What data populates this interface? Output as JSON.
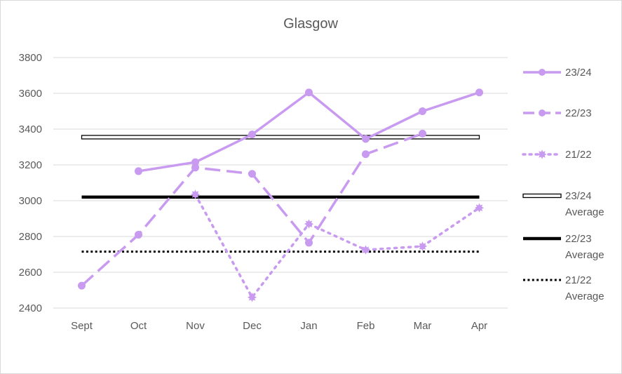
{
  "chart_data": {
    "type": "line",
    "title": "Glasgow",
    "xlabel": "",
    "ylabel": "",
    "categories": [
      "Sept",
      "Oct",
      "Nov",
      "Dec",
      "Jan",
      "Feb",
      "Mar",
      "Apr"
    ],
    "ylim": [
      2400,
      3800
    ],
    "yticks": [
      2400,
      2600,
      2800,
      3000,
      3200,
      3400,
      3600,
      3800
    ],
    "grid": true,
    "legend_position": "right",
    "series": [
      {
        "name": "23/24",
        "style": "solid-marker",
        "color": "#c89af0",
        "values": [
          null,
          3165,
          3215,
          3370,
          3605,
          3345,
          3500,
          3605
        ]
      },
      {
        "name": "22/23",
        "style": "dashed-marker",
        "color": "#c89af0",
        "values": [
          2525,
          2810,
          3185,
          3150,
          2765,
          3260,
          3375,
          null
        ]
      },
      {
        "name": "21/22",
        "style": "dotted-marker",
        "color": "#c89af0",
        "values": [
          null,
          null,
          3035,
          2460,
          2870,
          2725,
          2745,
          2960
        ]
      },
      {
        "name": "23/24 Average",
        "style": "hollow-bar",
        "color": "#000000",
        "values": [
          3355,
          3355,
          3355,
          3355,
          3355,
          3355,
          3355,
          3355
        ]
      },
      {
        "name": "22/23 Average",
        "style": "thick-solid",
        "color": "#000000",
        "values": [
          3020,
          3020,
          3020,
          3020,
          3020,
          3020,
          3020,
          3020
        ]
      },
      {
        "name": "21/22 Average",
        "style": "dotted",
        "color": "#000000",
        "values": [
          2715,
          2715,
          2715,
          2715,
          2715,
          2715,
          2715,
          2715
        ]
      }
    ],
    "legend": [
      {
        "line1": "23/24",
        "line2": ""
      },
      {
        "line1": "22/23",
        "line2": ""
      },
      {
        "line1": "21/22",
        "line2": ""
      },
      {
        "line1": "23/24",
        "line2": "Average"
      },
      {
        "line1": "22/23",
        "line2": "Average"
      },
      {
        "line1": "21/22",
        "line2": "Average"
      }
    ]
  }
}
